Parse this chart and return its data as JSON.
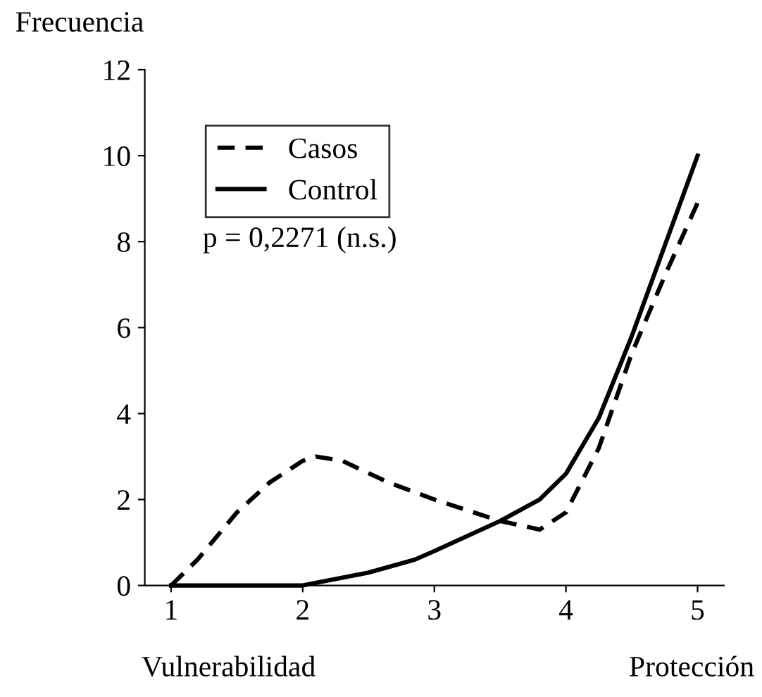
{
  "chart_data": {
    "type": "line",
    "ylabel": "Frecuencia",
    "series": [
      {
        "name": "Casos",
        "color": "#000000",
        "line_style": "dashed",
        "x": [
          1,
          1.2,
          1.5,
          1.75,
          2,
          2.1,
          2.3,
          2.65,
          3,
          3.5,
          3.8,
          4,
          4.25,
          4.5,
          4.75,
          5
        ],
        "values": [
          0,
          0.6,
          1.7,
          2.4,
          2.9,
          3.0,
          2.9,
          2.4,
          2.0,
          1.5,
          1.3,
          1.7,
          3.2,
          5.4,
          7.2,
          8.9
        ]
      },
      {
        "name": "Control",
        "color": "#000000",
        "line_style": "solid",
        "x": [
          1,
          1.5,
          2,
          2.5,
          2.85,
          3,
          3.5,
          3.8,
          4,
          4.25,
          4.5,
          4.75,
          5
        ],
        "values": [
          0,
          0,
          0,
          0.3,
          0.6,
          0.8,
          1.5,
          2.0,
          2.6,
          3.9,
          5.8,
          7.9,
          10
        ]
      }
    ],
    "xlim": [
      0.8,
      5.2
    ],
    "xticks": [
      1,
      2,
      3,
      4,
      5
    ],
    "ylim": [
      0,
      12
    ],
    "yticks": [
      0,
      2,
      4,
      6,
      8,
      10,
      12
    ],
    "grid": false,
    "legend": "top left",
    "marker": "none",
    "annotations": [
      "p = 0,2271 (n.s.)",
      "Vulnerabilidad",
      "Protección"
    ]
  }
}
